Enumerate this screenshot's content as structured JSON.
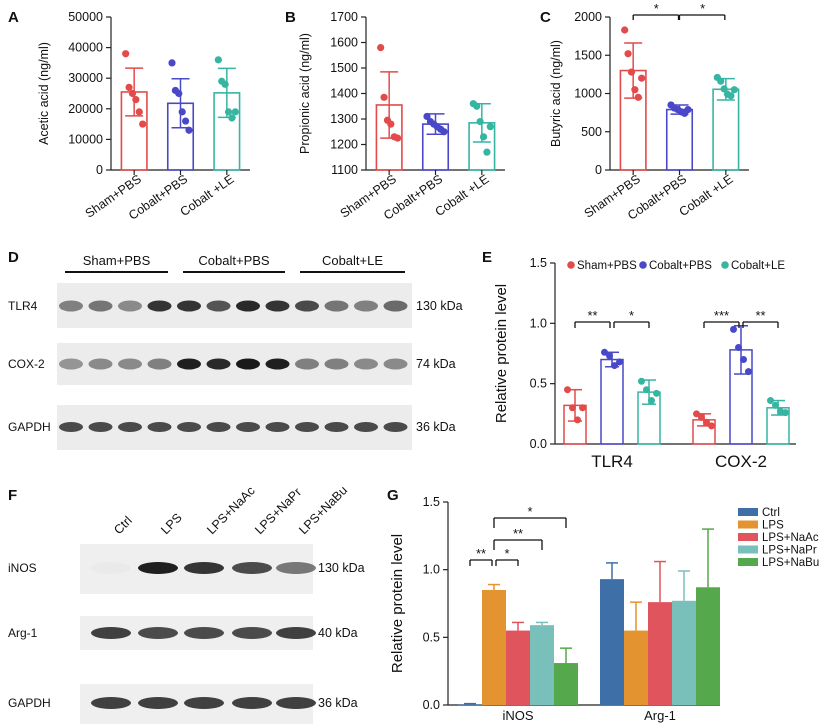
{
  "chart_data": [
    {
      "panel": "A",
      "type": "bar",
      "ylabel": "Acetic acid (ng/ml)",
      "ylim": [
        0,
        50000
      ],
      "yticks": [
        "0",
        "10000",
        "20000",
        "30000",
        "40000",
        "50000"
      ],
      "categories": [
        "Sham+PBS",
        "Cobalt+PBS",
        "Cobalt +LE"
      ],
      "means": [
        25500,
        21800,
        25200
      ],
      "errors": [
        7800,
        8000,
        8000
      ],
      "points": [
        [
          38000,
          27000,
          25000,
          23000,
          19000,
          15000
        ],
        [
          35000,
          26000,
          25000,
          19000,
          16000,
          13000
        ],
        [
          36000,
          29000,
          28000,
          19000,
          17000,
          19000
        ]
      ],
      "colors": [
        "#e34a4a",
        "#4848c8",
        "#35b5a2"
      ],
      "significance": []
    },
    {
      "panel": "B",
      "type": "bar",
      "ylabel": "Propionic acid (ng/ml)",
      "ylim": [
        1100,
        1700
      ],
      "yticks": [
        "1100",
        "1200",
        "1300",
        "1400",
        "1500",
        "1600",
        "1700"
      ],
      "categories": [
        "Sham+PBS",
        "Cobalt+PBS",
        "Cobalt +LE"
      ],
      "means": [
        1355,
        1280,
        1285
      ],
      "errors": [
        130,
        40,
        75
      ],
      "points": [
        [
          1580,
          1385,
          1295,
          1280,
          1230,
          1225
        ],
        [
          1310,
          1290,
          1280,
          1270,
          1260,
          1250
        ],
        [
          1360,
          1350,
          1290,
          1230,
          1170,
          1270
        ]
      ],
      "colors": [
        "#e34a4a",
        "#4848c8",
        "#35b5a2"
      ],
      "significance": []
    },
    {
      "panel": "C",
      "type": "bar",
      "ylabel": "Butyric acid (ng/ml)",
      "ylim": [
        0,
        2000
      ],
      "yticks": [
        "0",
        "500",
        "1000",
        "1500",
        "2000"
      ],
      "categories": [
        "Sham+PBS",
        "Cobalt+PBS",
        "Cobalt +LE"
      ],
      "means": [
        1300,
        790,
        1055
      ],
      "errors": [
        360,
        60,
        140
      ],
      "points": [
        [
          1830,
          1520,
          1280,
          1050,
          950,
          1200
        ],
        [
          850,
          810,
          790,
          760,
          740,
          790
        ],
        [
          1210,
          1160,
          1060,
          990,
          970,
          1050
        ]
      ],
      "colors": [
        "#e34a4a",
        "#4848c8",
        "#35b5a2"
      ],
      "significance": [
        {
          "pair": [
            0,
            1
          ],
          "label": "*"
        },
        {
          "pair": [
            1,
            2
          ],
          "label": "*"
        }
      ]
    },
    {
      "panel": "E",
      "type": "bar",
      "ylabel": "Relative protein level",
      "ylim": [
        0,
        1.5
      ],
      "yticks": [
        "0.0",
        "0.5",
        "1.0",
        "1.5"
      ],
      "categories": [
        "TLR4",
        "COX-2"
      ],
      "legend": [
        "Sham+PBS",
        "Cobalt+PBS",
        "Cobalt+LE"
      ],
      "colors": [
        "#e34a4a",
        "#4848c8",
        "#35b5a2"
      ],
      "series": [
        {
          "name": "Sham+PBS",
          "values": [
            0.32,
            0.2
          ],
          "errors": [
            0.13,
            0.05
          ],
          "points": [
            [
              0.45,
              0.3,
              0.2,
              0.3
            ],
            [
              0.25,
              0.22,
              0.18,
              0.15
            ]
          ]
        },
        {
          "name": "Cobalt+PBS",
          "values": [
            0.7,
            0.78
          ],
          "errors": [
            0.06,
            0.2
          ],
          "points": [
            [
              0.76,
              0.73,
              0.65,
              0.68
            ],
            [
              0.95,
              0.8,
              0.7,
              0.6
            ]
          ]
        },
        {
          "name": "Cobalt+LE",
          "values": [
            0.43,
            0.3
          ],
          "errors": [
            0.1,
            0.06
          ],
          "points": [
            [
              0.52,
              0.45,
              0.36,
              0.42
            ],
            [
              0.36,
              0.32,
              0.27,
              0.26
            ]
          ]
        }
      ],
      "significance": [
        {
          "category": 0,
          "pair": [
            0,
            1
          ],
          "label": "**"
        },
        {
          "category": 0,
          "pair": [
            1,
            2
          ],
          "label": "*"
        },
        {
          "category": 1,
          "pair": [
            0,
            1
          ],
          "label": "***"
        },
        {
          "category": 1,
          "pair": [
            1,
            2
          ],
          "label": "**"
        }
      ]
    },
    {
      "panel": "G",
      "type": "bar",
      "ylabel": "Relative protein level",
      "ylim": [
        0,
        1.5
      ],
      "yticks": [
        "0.0",
        "0.5",
        "1.0",
        "1.5"
      ],
      "categories": [
        "iNOS",
        "Arg-1"
      ],
      "legend": [
        "Ctrl",
        "LPS",
        "LPS+NaAc",
        "LPS+NaPr",
        "LPS+NaBu"
      ],
      "colors": [
        "#3e6fa6",
        "#e3932f",
        "#e0545d",
        "#7ac0ba",
        "#55a84b"
      ],
      "series": [
        {
          "name": "Ctrl",
          "values": [
            0.005,
            0.93
          ],
          "errors": [
            0.005,
            0.12
          ]
        },
        {
          "name": "LPS",
          "values": [
            0.85,
            0.55
          ],
          "errors": [
            0.04,
            0.21
          ]
        },
        {
          "name": "LPS+NaAc",
          "values": [
            0.55,
            0.76
          ],
          "errors": [
            0.06,
            0.3
          ]
        },
        {
          "name": "LPS+NaPr",
          "values": [
            0.59,
            0.77
          ],
          "errors": [
            0.02,
            0.22
          ]
        },
        {
          "name": "LPS+NaBu",
          "values": [
            0.31,
            0.87
          ],
          "errors": [
            0.11,
            0.43
          ]
        }
      ],
      "significance": [
        {
          "pair": [
            0,
            1
          ],
          "label": "**"
        },
        {
          "pair": [
            1,
            2
          ],
          "label": "*"
        },
        {
          "pair": [
            1,
            3
          ],
          "label": "**"
        },
        {
          "pair": [
            1,
            4
          ],
          "label": "*"
        }
      ]
    }
  ],
  "blots": {
    "D": {
      "groups": [
        "Sham+PBS",
        "Cobalt+PBS",
        "Cobalt+LE"
      ],
      "rows": [
        {
          "label": "TLR4",
          "kda": "130 kDa"
        },
        {
          "label": "COX-2",
          "kda": "74 kDa"
        },
        {
          "label": "GAPDH",
          "kda": "36 kDa"
        }
      ]
    },
    "F": {
      "lanes": [
        "Ctrl",
        "LPS",
        "LPS+NaAc",
        "LPS+NaPr",
        "LPS+NaBu"
      ],
      "rows": [
        {
          "label": "iNOS",
          "kda": "130 kDa"
        },
        {
          "label": "Arg-1",
          "kda": "40 kDa"
        },
        {
          "label": "GAPDH",
          "kda": "36 kDa"
        }
      ]
    }
  },
  "panel_letters": [
    "A",
    "B",
    "C",
    "D",
    "E",
    "F",
    "G"
  ]
}
